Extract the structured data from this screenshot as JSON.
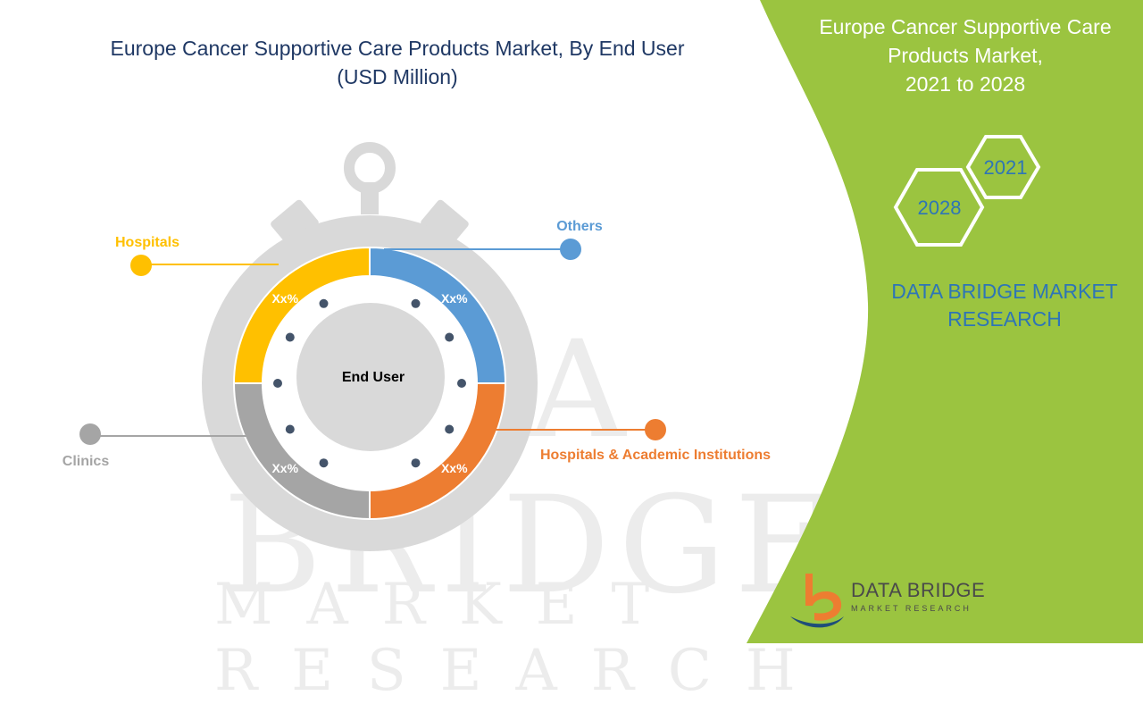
{
  "title_line1": "Europe Cancer Supportive Care Products Market, By End User",
  "title_line2": "(USD Million)",
  "panel": {
    "line1": "Europe Cancer Supportive Care",
    "line2": "Products Market,",
    "line3": "2021 to 2028",
    "hex_a": "2021",
    "hex_b": "2028",
    "brand_line1": "DATA BRIDGE MARKET",
    "brand_line2": "RESEARCH",
    "accent": "#9bc440"
  },
  "logo": {
    "name": "DATA BRIDGE",
    "tagline": "MARKET RESEARCH"
  },
  "watermark": {
    "line1": "DATA BRIDGE",
    "line2": "MARKET RESEARCH"
  },
  "chart_data": {
    "type": "pie",
    "center_label": "End User",
    "series": [
      {
        "name": "Others",
        "value_label": "Xx%",
        "value": 25,
        "color": "#5b9bd5"
      },
      {
        "name": "Hospitals & Academic Institutions",
        "value_label": "Xx%",
        "value": 25,
        "color": "#ed7d31"
      },
      {
        "name": "Clinics",
        "value_label": "Xx%",
        "value": 25,
        "color": "#a5a5a5"
      },
      {
        "name": "Hospitals",
        "value_label": "Xx%",
        "value": 25,
        "color": "#ffc000"
      }
    ]
  }
}
